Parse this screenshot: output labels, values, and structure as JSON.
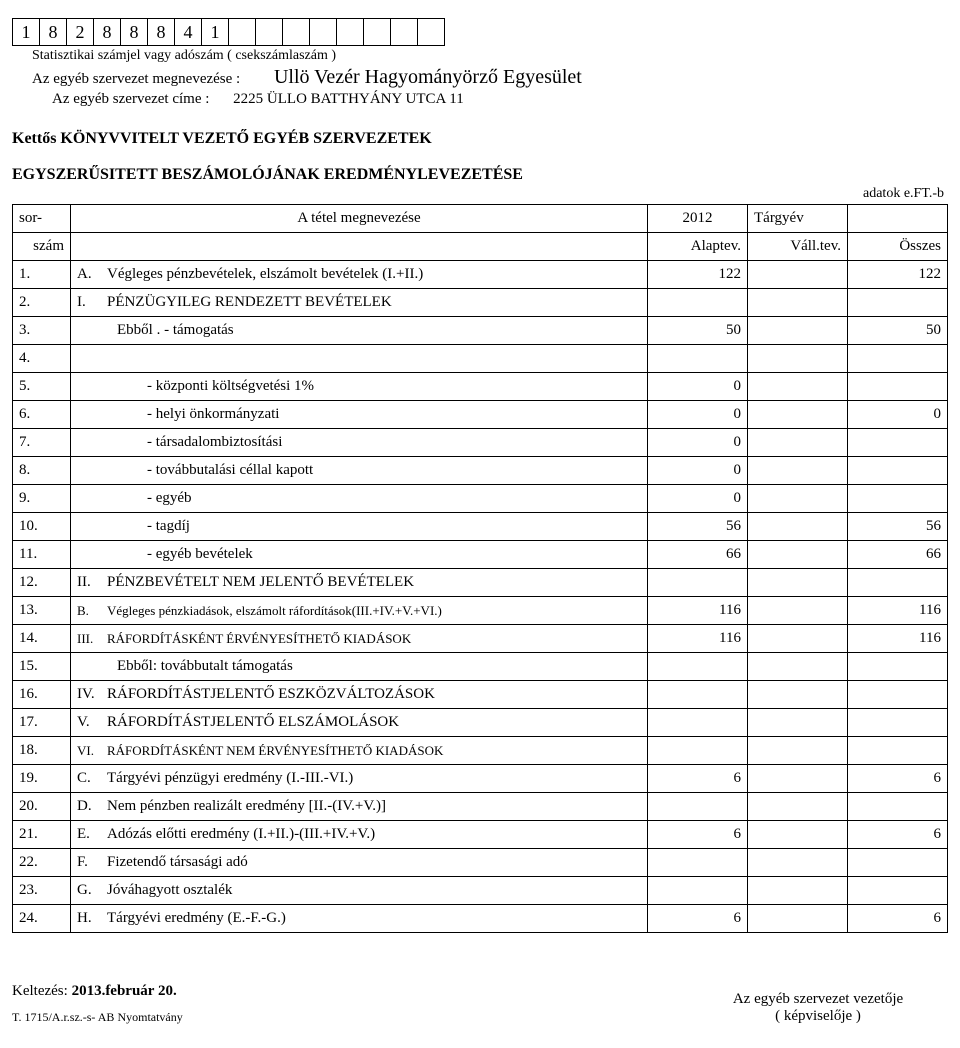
{
  "id_digits": [
    "1",
    "8",
    "2",
    "8",
    "8",
    "8",
    "4",
    "1",
    "",
    "",
    "",
    "",
    "",
    "",
    "",
    ""
  ],
  "id_sublabel": "Statisztikai számjel vagy adószám ( csekszámlaszám )",
  "org_label": "Az egyéb szervezet megnevezése :",
  "org_name": "Ullö Vezér Hagyományörző Egyesület",
  "addr_label": "Az egyéb szervezet címe :",
  "addr_value": "2225 ÜLLO BATTHYÁNY UTCA 11",
  "heading_line1": "Kettős KÖNYVVITELT VEZETŐ EGYÉB SZERVEZETEK",
  "heading_line2": "EGYSZERŰSITETT BESZÁMOLÓJÁNAK EREDMÉNYLEVEZETÉSE",
  "unit": "adatok e.FT.-b",
  "header": {
    "sorszam_top": "sor-",
    "sorszam_bot": "szám",
    "title": "A tétel megnevezése",
    "year": "2012",
    "targyev": "Tárgyév",
    "alaptev": "Alaptev.",
    "valltev": "Váll.tev.",
    "osszes": "Összes"
  },
  "rows": [
    {
      "n": "1.",
      "p": "A.",
      "d": "Végleges pénzbevételek, elszámolt bevételek (I.+II.)",
      "v1": "122",
      "v2": "",
      "v3": "122"
    },
    {
      "n": "2.",
      "p": "I.",
      "d": "PÉNZÜGYILEG RENDEZETT BEVÉTELEK",
      "v1": "",
      "v2": "",
      "v3": ""
    },
    {
      "n": "3.",
      "p": "",
      "d": "Ebből . - támogatás",
      "indent": 1,
      "v1": "50",
      "v2": "",
      "v3": "50"
    },
    {
      "n": "4.",
      "p": "",
      "d": "",
      "v1": "",
      "v2": "",
      "v3": ""
    },
    {
      "n": "5.",
      "p": "",
      "d": "- központi költségvetési 1%",
      "indent": 2,
      "v1": "0",
      "v2": "",
      "v3": ""
    },
    {
      "n": "6.",
      "p": "",
      "d": "- helyi önkormányzati",
      "indent": 2,
      "v1": "0",
      "v2": "",
      "v3": "0"
    },
    {
      "n": "7.",
      "p": "",
      "d": "- társadalombiztosítási",
      "indent": 2,
      "v1": "0",
      "v2": "",
      "v3": ""
    },
    {
      "n": "8.",
      "p": "",
      "d": "- továbbutalási céllal kapott",
      "indent": 2,
      "v1": "0",
      "v2": "",
      "v3": ""
    },
    {
      "n": "9.",
      "p": "",
      "d": "- egyéb",
      "indent": 2,
      "v1": "0",
      "v2": "",
      "v3": ""
    },
    {
      "n": "10.",
      "p": "",
      "d": "-  tagdíj",
      "indent": 2,
      "v1": "56",
      "v2": "",
      "v3": "56"
    },
    {
      "n": "11.",
      "p": "",
      "d": "-  egyéb bevételek",
      "indent": 2,
      "v1": "66",
      "v2": "",
      "v3": "66"
    },
    {
      "n": "12.",
      "p": "II.",
      "d": "PÉNZBEVÉTELT NEM JELENTŐ BEVÉTELEK",
      "v1": "",
      "v2": "",
      "v3": ""
    },
    {
      "n": "13.",
      "p": "B.",
      "d": "Végleges pénzkiadások, elszámolt ráfordítások(III.+IV.+V.+VI.)",
      "small": true,
      "v1": "116",
      "v2": "",
      "v3": "116"
    },
    {
      "n": "14.",
      "p": "III.",
      "d": "RÁFORDÍTÁSKÉNT ÉRVÉNYESÍTHETŐ KIADÁSOK",
      "small": true,
      "v1": "116",
      "v2": "",
      "v3": "116"
    },
    {
      "n": "15.",
      "p": "",
      "d": "Ebből: továbbutalt támogatás",
      "indent": 1,
      "v1": "",
      "v2": "",
      "v3": ""
    },
    {
      "n": "16.",
      "p": "IV.",
      "d": "RÁFORDÍTÁSTJELENTŐ ESZKÖZVÁLTOZÁSOK",
      "v1": "",
      "v2": "",
      "v3": ""
    },
    {
      "n": "17.",
      "p": "V.",
      "d": "RÁFORDÍTÁSTJELENTŐ ELSZÁMOLÁSOK",
      "v1": "",
      "v2": "",
      "v3": ""
    },
    {
      "n": "18.",
      "p": "VI.",
      "d": "RÁFORDÍTÁSKÉNT NEM ÉRVÉNYESÍTHETŐ KIADÁSOK",
      "small": true,
      "v1": "",
      "v2": "",
      "v3": ""
    },
    {
      "n": "19.",
      "p": "C.",
      "d": "Tárgyévi pénzügyi eredmény (I.-III.-VI.)",
      "v1": "6",
      "v2": "",
      "v3": "6"
    },
    {
      "n": "20.",
      "p": "D.",
      "d": "Nem pénzben realizált eredmény [II.-(IV.+V.)]",
      "v1": "",
      "v2": "",
      "v3": ""
    },
    {
      "n": "21.",
      "p": "E.",
      "d": "Adózás előtti eredmény (I.+II.)-(III.+IV.+V.)",
      "v1": "6",
      "v2": "",
      "v3": "6"
    },
    {
      "n": "22.",
      "p": "F.",
      "d": "Fizetendő társasági adó",
      "v1": "",
      "v2": "",
      "v3": ""
    },
    {
      "n": "23.",
      "p": "G.",
      "d": "Jóváhagyott osztalék",
      "v1": "",
      "v2": "",
      "v3": ""
    },
    {
      "n": "24.",
      "p": "H.",
      "d": "Tárgyévi eredmény (E.-F.-G.)",
      "v1": "6",
      "v2": "",
      "v3": "6"
    }
  ],
  "footer": {
    "date_label": "Keltezés: ",
    "date_value": "2013.február 20.",
    "form_id": "T.  1715/A.r.sz.-s- AB Nyomtatvány",
    "sig_line1": "Az egyéb szervezet vezetője",
    "sig_line2": "( képviselője )"
  }
}
